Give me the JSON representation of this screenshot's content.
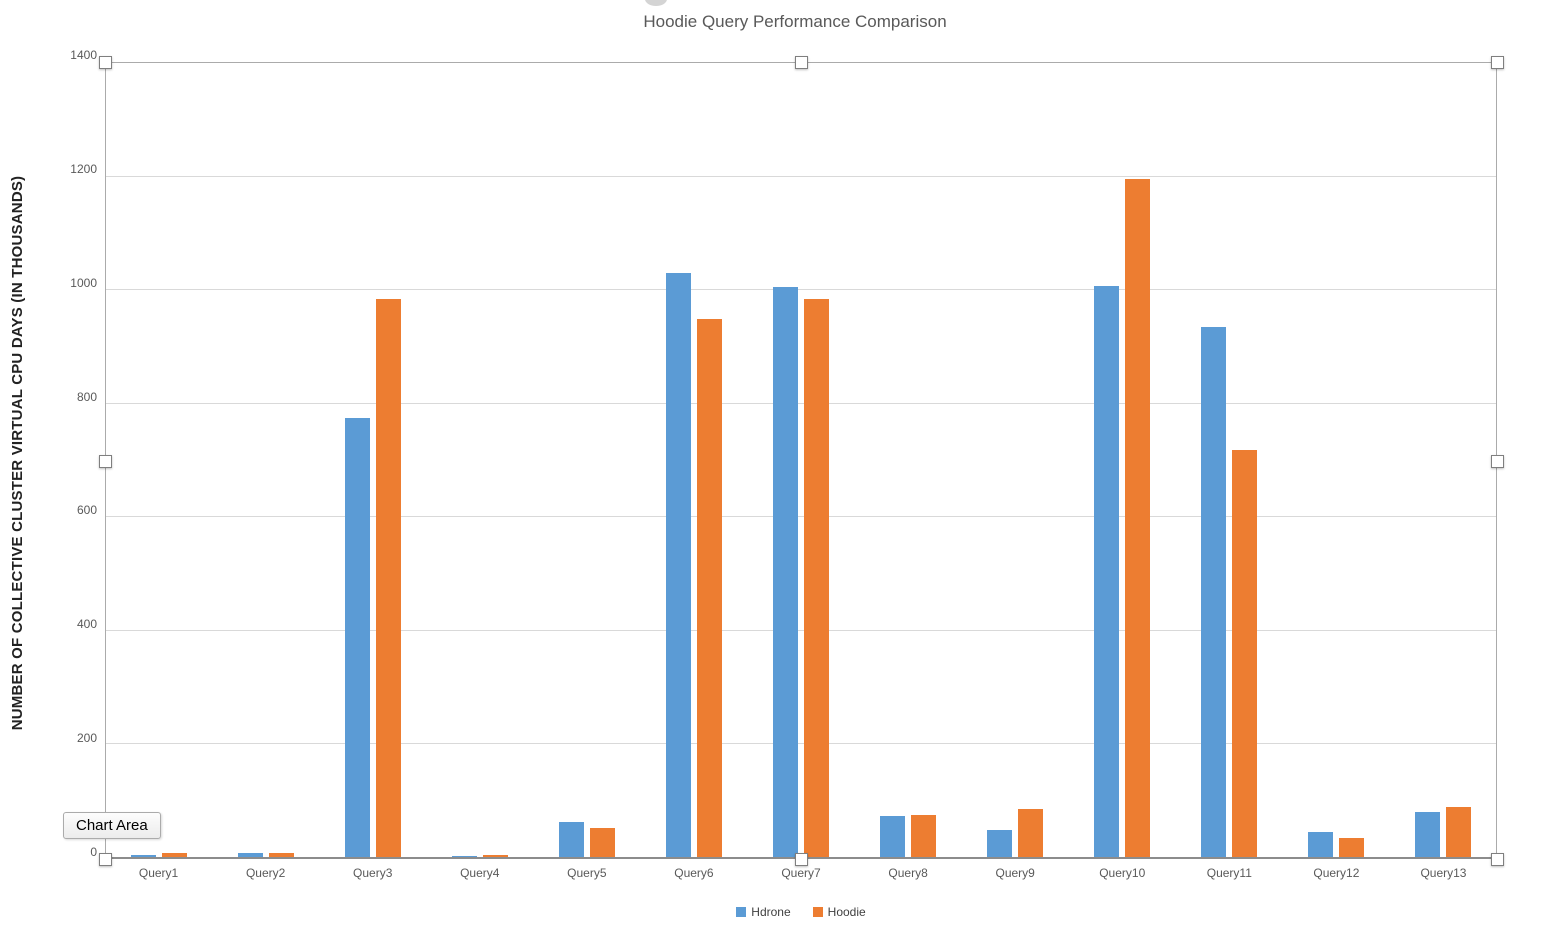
{
  "chart_data": {
    "type": "bar",
    "title": "Hoodie Query Performance Comparison",
    "xlabel": "",
    "ylabel": "NUMBER OF COLLECTIVE CLUSTER VIRTUAL CPU DAYS (IN THOUSANDS)",
    "categories": [
      "Query1",
      "Query2",
      "Query3",
      "Query4",
      "Query5",
      "Query6",
      "Query7",
      "Query8",
      "Query9",
      "Query10",
      "Query11",
      "Query12",
      "Query13"
    ],
    "series": [
      {
        "name": "Hdrone",
        "color": "#5B9BD5",
        "values": [
          5,
          8,
          775,
          4,
          63,
          1030,
          1005,
          74,
          50,
          1008,
          935,
          45,
          81
        ]
      },
      {
        "name": "Hoodie",
        "color": "#ED7D31",
        "values": [
          8,
          8,
          985,
          5,
          52,
          950,
          985,
          76,
          86,
          1195,
          718,
          35,
          90
        ]
      }
    ],
    "ylim": [
      0,
      1400
    ],
    "ytick_step": 200,
    "grid": true,
    "legend_position": "bottom"
  },
  "selection": {
    "tooltip": "Chart Area",
    "handles": [
      "top-left",
      "top-center",
      "top-right",
      "mid-left",
      "mid-right",
      "bottom-left",
      "bottom-center",
      "bottom-right"
    ]
  },
  "colors": {
    "title_text": "#595959",
    "axis_text": "#595959",
    "gridline": "#d9d9d9",
    "axis_line": "#8c8c8c",
    "frame": "#ababab"
  }
}
